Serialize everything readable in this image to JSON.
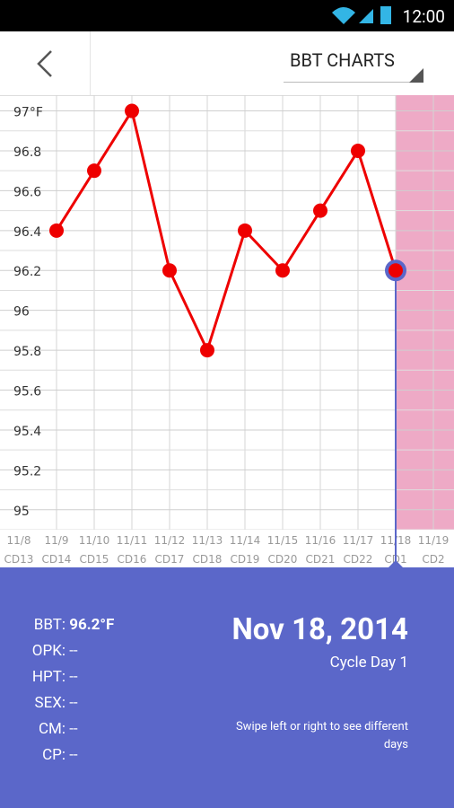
{
  "status_bar": {
    "time": "12:00"
  },
  "header": {
    "title": "BBT CHARTS"
  },
  "chart_data": {
    "type": "line",
    "categories": [
      "11/8",
      "11/9",
      "11/10",
      "11/11",
      "11/12",
      "11/13",
      "11/14",
      "11/15",
      "11/16",
      "11/17",
      "11/18",
      "11/19"
    ],
    "cycle_days": [
      "CD13",
      "CD14",
      "CD15",
      "CD16",
      "CD17",
      "CD18",
      "CD19",
      "CD20",
      "CD21",
      "CD22",
      "CD1",
      "CD2"
    ],
    "values": [
      null,
      96.4,
      96.7,
      97,
      96.2,
      95.8,
      96.4,
      96.2,
      96.5,
      96.8,
      96.2,
      null
    ],
    "color": "#ee0000",
    "ylim": [
      94.9,
      97.07
    ],
    "yticks": [
      95,
      95.2,
      95.4,
      95.6,
      95.8,
      96,
      96.2,
      96.4,
      96.6,
      96.8,
      {
        "value": 97,
        "label": "97°F"
      }
    ],
    "grid": true,
    "selected_category": "11/18",
    "selected_color": "#5b67c9",
    "period_color": "#eeaac6"
  },
  "detail": {
    "rows": [
      {
        "label": "BBT:",
        "value": "96.2°F"
      },
      {
        "label": "OPK:",
        "value": "--"
      },
      {
        "label": "HPT:",
        "value": "--"
      },
      {
        "label": "SEX:",
        "value": "--"
      },
      {
        "label": "CM:",
        "value": "--"
      },
      {
        "label": "CP:",
        "value": "--"
      }
    ],
    "date": "Nov 18, 2014",
    "cycle_day": "Cycle Day 1",
    "hint": "Swipe left or right to see different days"
  }
}
